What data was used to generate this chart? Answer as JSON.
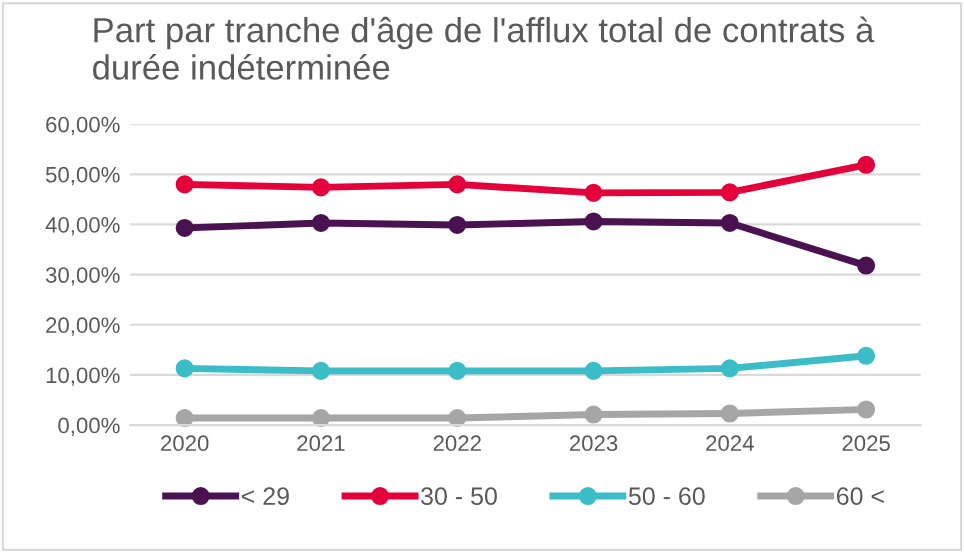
{
  "chart_data": {
    "type": "line",
    "title": "Part par tranche d'âge de l'afflux total de contrats à\ndurée indéterminée",
    "categories": [
      "2020",
      "2021",
      "2022",
      "2023",
      "2024",
      "2025"
    ],
    "series": [
      {
        "name": "< 29",
        "color": "#4a1250",
        "values": [
          39.3,
          40.3,
          39.9,
          40.6,
          40.3,
          31.8
        ]
      },
      {
        "name": "30 - 50",
        "color": "#e4003b",
        "values": [
          48.0,
          47.4,
          48.0,
          46.3,
          46.4,
          51.9
        ]
      },
      {
        "name": "50 - 60",
        "color": "#3bbdc7",
        "values": [
          11.3,
          10.8,
          10.8,
          10.8,
          11.3,
          13.8
        ]
      },
      {
        "name": "60 <",
        "color": "#a6a6a6",
        "values": [
          1.4,
          1.4,
          1.4,
          2.1,
          2.3,
          3.1
        ]
      }
    ],
    "ylim": [
      0,
      60
    ],
    "yticks": [
      {
        "value": 0,
        "label": "0,00%"
      },
      {
        "value": 10,
        "label": "10,00%"
      },
      {
        "value": 20,
        "label": "20,00%"
      },
      {
        "value": 30,
        "label": "30,00%"
      },
      {
        "value": 40,
        "label": "40,00%"
      },
      {
        "value": 50,
        "label": "50,00%"
      },
      {
        "value": 60,
        "label": "60,00%"
      }
    ],
    "grid": "y",
    "legend": "bottom",
    "marker": "circle",
    "line_style": "solid"
  }
}
